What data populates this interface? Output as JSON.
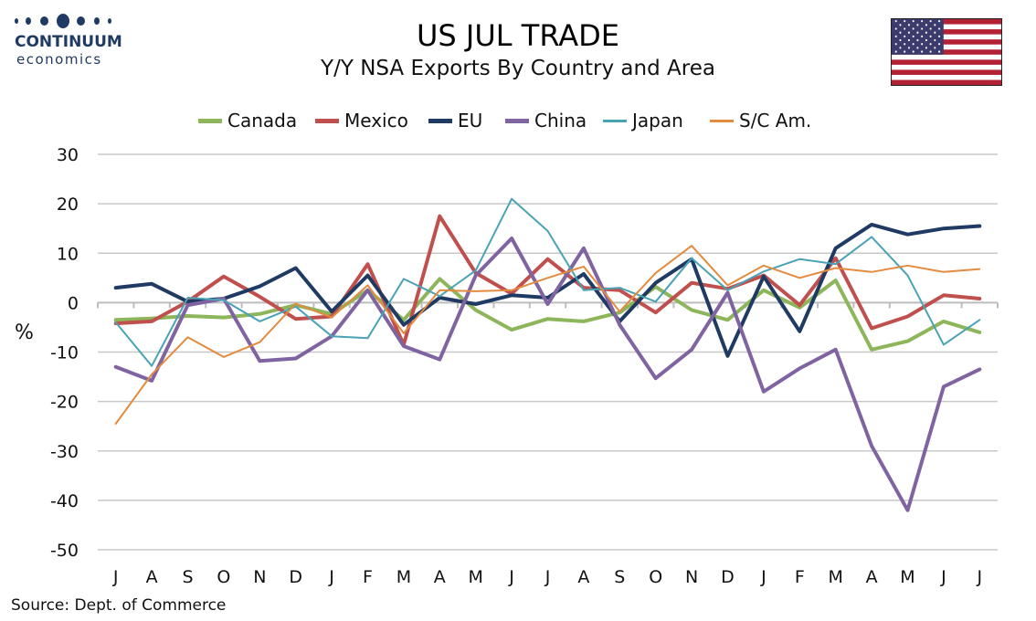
{
  "header": {
    "title": "US JUL TRADE",
    "subtitle": "Y/Y NSA Exports By Country and Area",
    "logo_line1": "CONTINUUM",
    "logo_line2": "economics"
  },
  "source": "Source: Dept. of Commerce",
  "colors": {
    "Canada": "#8db55a",
    "Mexico": "#c0504d",
    "EU": "#1f3b63",
    "China": "#8064a2",
    "Japan": "#4aa3b5",
    "S/C Am.": "#e38b3f",
    "grid": "#c8c8c8",
    "logo": "#1f3b63"
  },
  "chart_data": {
    "type": "line",
    "title": "Y/Y NSA Exports By Country and Area",
    "ylabel": "%",
    "xlabel": "",
    "ylim": [
      -50,
      30
    ],
    "yticks": [
      30,
      20,
      10,
      0,
      -10,
      -20,
      -30,
      -40,
      -50
    ],
    "grid": true,
    "legend": "top",
    "categories": [
      "J",
      "A",
      "S",
      "O",
      "N",
      "D",
      "J",
      "F",
      "M",
      "A",
      "M",
      "J",
      "J",
      "A",
      "S",
      "O",
      "N",
      "D",
      "J",
      "F",
      "M",
      "A",
      "M",
      "J",
      "J"
    ],
    "series": [
      {
        "name": "Canada",
        "width": 4,
        "values": [
          -3.5,
          -3.2,
          -2.7,
          -3.0,
          -2.3,
          -0.5,
          -2.3,
          2.5,
          -3.5,
          4.8,
          -1.5,
          -5.5,
          -3.3,
          -3.8,
          -2.0,
          3.2,
          -1.5,
          -3.5,
          2.5,
          -1.0,
          4.5,
          -9.5,
          -7.8,
          -3.8,
          -6.0
        ]
      },
      {
        "name": "Mexico",
        "width": 4,
        "values": [
          -4.2,
          -3.8,
          0.2,
          5.3,
          1.2,
          -3.3,
          -2.8,
          7.8,
          -8.5,
          17.5,
          6.0,
          1.8,
          8.8,
          3.0,
          2.5,
          -2.0,
          4.0,
          2.8,
          5.5,
          -0.5,
          9.0,
          -5.2,
          -2.8,
          1.5,
          0.8
        ]
      },
      {
        "name": "EU",
        "width": 4,
        "values": [
          3.0,
          3.8,
          0.2,
          0.8,
          3.3,
          7.0,
          -1.8,
          5.5,
          -4.5,
          1.0,
          -0.3,
          1.5,
          1.0,
          5.8,
          -3.8,
          4.0,
          8.8,
          -10.8,
          5.3,
          -5.8,
          11.0,
          15.8,
          13.8,
          15.0,
          15.5
        ]
      },
      {
        "name": "China",
        "width": 4,
        "values": [
          -13.0,
          -15.8,
          -0.5,
          0.8,
          -11.8,
          -11.3,
          -6.8,
          2.5,
          -8.8,
          -11.5,
          5.5,
          13.0,
          -0.3,
          11.0,
          -4.5,
          -15.3,
          -9.5,
          2.0,
          -18.0,
          -13.3,
          -9.5,
          -29.0,
          -42.0,
          -17.0,
          -13.5
        ]
      },
      {
        "name": "Japan",
        "width": 2,
        "values": [
          -4.0,
          -12.8,
          1.0,
          0.5,
          -3.8,
          -0.8,
          -6.8,
          -7.2,
          4.8,
          1.3,
          6.5,
          21.0,
          14.5,
          2.5,
          3.0,
          0.2,
          9.0,
          2.5,
          6.3,
          8.8,
          7.8,
          13.3,
          5.5,
          -8.5,
          -3.5
        ]
      },
      {
        "name": "S/C Am.",
        "width": 2,
        "values": [
          -24.5,
          -14.5,
          -7.0,
          -11.0,
          -8.0,
          -0.2,
          -3.0,
          3.5,
          -6.2,
          2.5,
          2.3,
          2.5,
          5.0,
          7.3,
          -1.8,
          6.0,
          11.5,
          3.5,
          7.5,
          5.0,
          7.0,
          6.2,
          7.5,
          6.2,
          6.8
        ]
      }
    ]
  }
}
